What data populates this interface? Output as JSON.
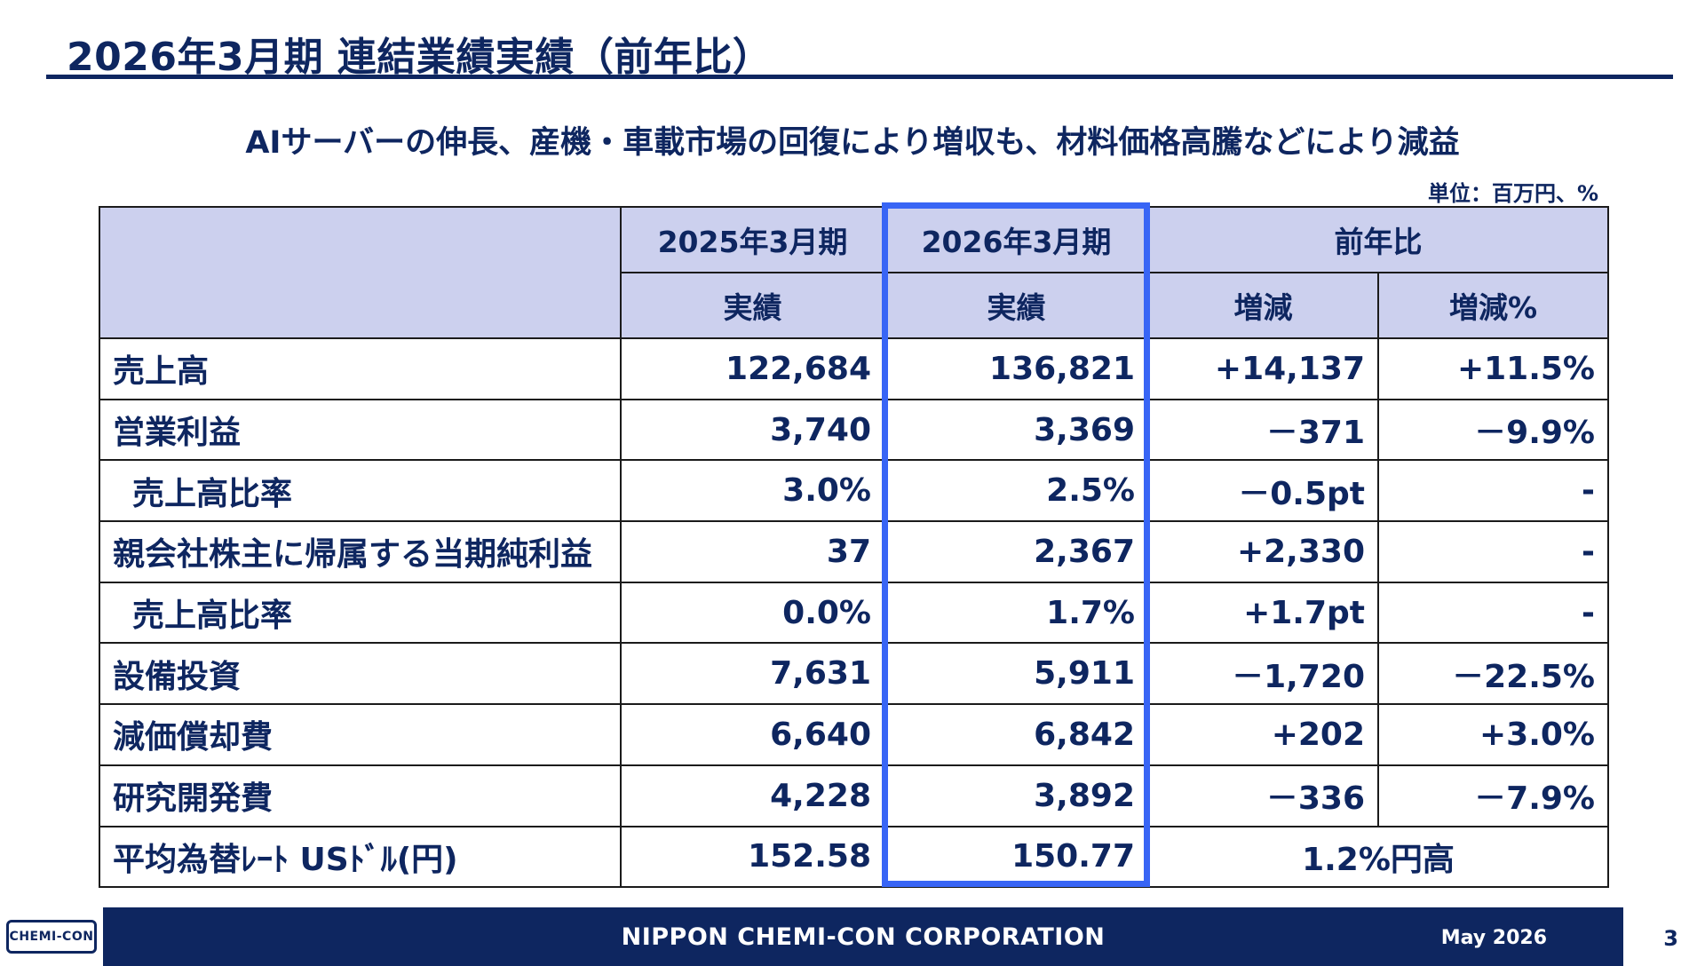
{
  "title": "2026年3月期 連結業績実績（前年比）",
  "subtitle": "AIサーバーの伸長、産機・車載市場の回復により増収も、材料価格高騰などにより減益",
  "unit": "単位：百万円、%",
  "table": {
    "header": {
      "fy2025": "2025年3月期",
      "fy2026": "2026年3月期",
      "yoy": "前年比",
      "actual_2025": "実績",
      "actual_2026": "実績",
      "change": "増減",
      "change_pct": "増減%"
    },
    "rows": [
      {
        "label": "売上高",
        "fy2025": "122,684",
        "fy2026": "136,821",
        "change": "+14,137",
        "change_pct": "+11.5%"
      },
      {
        "label": "営業利益",
        "fy2025": "3,740",
        "fy2026": "3,369",
        "change": "－371",
        "change_pct": "－9.9%"
      },
      {
        "label": "売上高比率",
        "fy2025": "3.0%",
        "fy2026": "2.5%",
        "change": "－0.5pt",
        "change_pct": "-"
      },
      {
        "label": "親会社株主に帰属する当期純利益",
        "fy2025": "37",
        "fy2026": "2,367",
        "change": "+2,330",
        "change_pct": "-"
      },
      {
        "label": "売上高比率",
        "fy2025": "0.0%",
        "fy2026": "1.7%",
        "change": "+1.7pt",
        "change_pct": "-"
      },
      {
        "label": "設備投資",
        "fy2025": "7,631",
        "fy2026": "5,911",
        "change": "－1,720",
        "change_pct": "－22.5%"
      },
      {
        "label": "減価償却費",
        "fy2025": "6,640",
        "fy2026": "6,842",
        "change": "+202",
        "change_pct": "+3.0%"
      },
      {
        "label": "研究開発費",
        "fy2025": "4,228",
        "fy2026": "3,892",
        "change": "－336",
        "change_pct": "－7.9%"
      }
    ],
    "fx_row": {
      "label": "平均為替ﾚｰﾄ USﾄﾞﾙ(円)",
      "fy2025": "152.58",
      "fy2026": "150.77",
      "yoy": "1.2%円高"
    }
  },
  "footer": {
    "logo_text": "CHEMI-CON",
    "company": "NIPPON CHEMI-CON CORPORATION",
    "date": "May 2026",
    "page": "3"
  },
  "colors": {
    "navy": "#0e2660",
    "header_bg": "#ccd0ee",
    "highlight": "#3865f5"
  }
}
